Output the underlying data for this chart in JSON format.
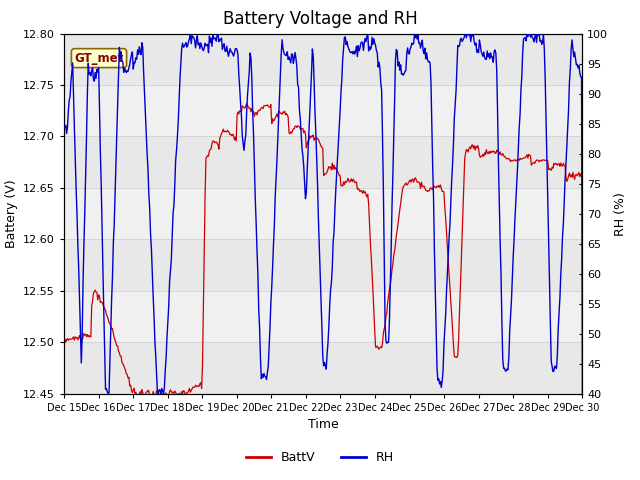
{
  "title": "Battery Voltage and RH",
  "xlabel": "Time",
  "ylabel_left": "Battery (V)",
  "ylabel_right": "RH (%)",
  "annotation": "GT_met",
  "ylim_left": [
    12.45,
    12.8
  ],
  "ylim_right": [
    40,
    100
  ],
  "yticks_left": [
    12.45,
    12.5,
    12.55,
    12.6,
    12.65,
    12.7,
    12.75,
    12.8
  ],
  "yticks_right": [
    40,
    45,
    50,
    55,
    60,
    65,
    70,
    75,
    80,
    85,
    90,
    95,
    100
  ],
  "x_tick_labels": [
    "Dec 15",
    "Dec 16",
    "Dec 17",
    "Dec 18",
    "Dec 19",
    "Dec 20",
    "Dec 21",
    "Dec 22",
    "Dec 23",
    "Dec 24",
    "Dec 25",
    "Dec 26",
    "Dec 27",
    "Dec 28",
    "Dec 29",
    "Dec 30"
  ],
  "color_battv": "#cc0000",
  "color_rh": "#0000cc",
  "legend_labels": [
    "BattV",
    "RH"
  ],
  "background_color": "#ffffff",
  "plot_bg_stripes": [
    "#e8e8e8",
    "#f0f0f0"
  ],
  "title_fontsize": 12,
  "axis_fontsize": 9,
  "tick_fontsize": 8
}
